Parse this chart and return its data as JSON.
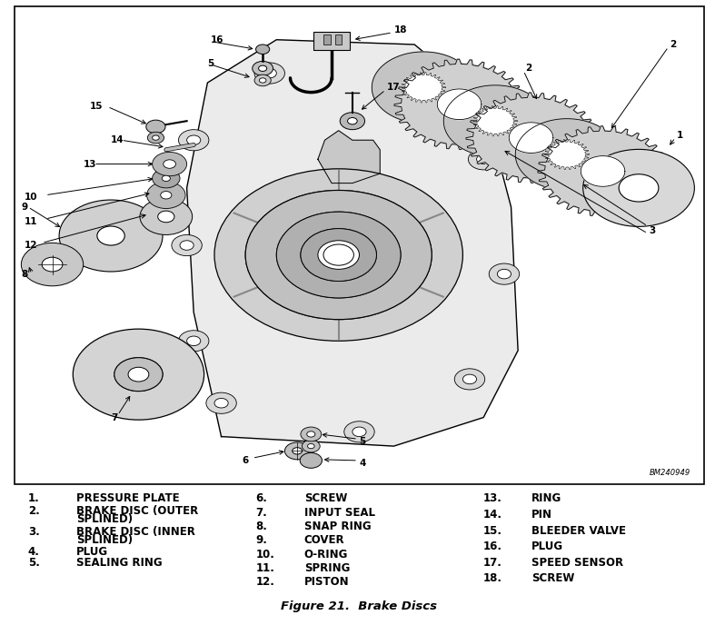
{
  "title": "Figure 21.  Brake Discs",
  "bg_color": "#ffffff",
  "diagram_ref": "BM240949",
  "figsize": [
    7.87,
    6.88
  ],
  "dpi": 100,
  "legend_col1": [
    [
      "1.",
      "PRESSURE PLATE"
    ],
    [
      "2.",
      "BRAKE DISC (OUTER"
    ],
    [
      " ",
      "SPLINED)"
    ],
    [
      "3.",
      "BRAKE DISC (INNER"
    ],
    [
      " ",
      "SPLINED)"
    ],
    [
      "4.",
      "PLUG"
    ],
    [
      "5.",
      "SEALING RING"
    ]
  ],
  "legend_col2": [
    [
      "6.",
      "SCREW"
    ],
    [
      "7.",
      "INPUT SEAL"
    ],
    [
      "8.",
      "SNAP RING"
    ],
    [
      "9.",
      "COVER"
    ],
    [
      "10.",
      "O-RING"
    ],
    [
      "11.",
      "SPRING"
    ],
    [
      "12.",
      "PISTON"
    ]
  ],
  "legend_col3": [
    [
      "13.",
      "RING"
    ],
    [
      "14.",
      "PIN"
    ],
    [
      "15.",
      "BLEEDER VALVE"
    ],
    [
      "16.",
      "PLUG"
    ],
    [
      "17.",
      "SPEED SENSOR"
    ],
    [
      "18.",
      "SCREW"
    ]
  ],
  "font_size_legend": 8.5,
  "font_size_caption": 9.5
}
